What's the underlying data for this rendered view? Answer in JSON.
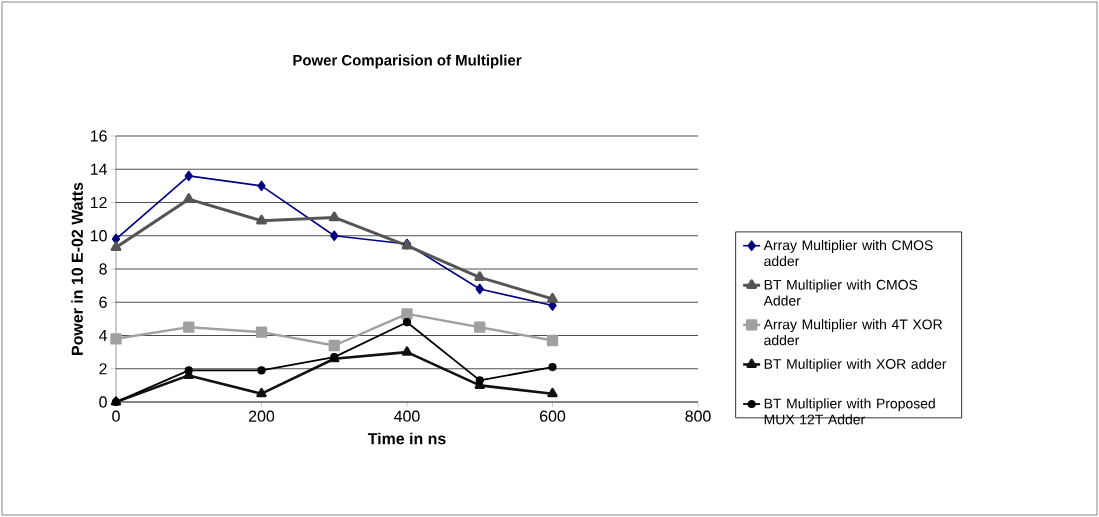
{
  "chart_data": {
    "type": "line",
    "title": "Power Comparision of Multiplier",
    "xlabel": "Time in ns",
    "ylabel": "Power in 10 E-02 Watts",
    "x": [
      0,
      100,
      200,
      300,
      400,
      500,
      600
    ],
    "xlim": [
      0,
      800
    ],
    "xticks": [
      0,
      200,
      400,
      600,
      800
    ],
    "ylim": [
      0,
      16
    ],
    "yticks": [
      0,
      2,
      4,
      6,
      8,
      10,
      12,
      14,
      16
    ],
    "grid": "y",
    "legend": "right",
    "series": [
      {
        "name": "Array Multiplier with CMOS adder",
        "color": "#000080",
        "marker": "diamond",
        "values": [
          9.8,
          13.6,
          13.0,
          10.0,
          9.5,
          6.8,
          5.8
        ]
      },
      {
        "name": "BT Multiplier with CMOS Adder",
        "color": "#555555",
        "marker": "triangle",
        "values": [
          9.3,
          12.2,
          10.9,
          11.1,
          9.4,
          7.5,
          6.2
        ]
      },
      {
        "name": "Array Multiplier with 4T XOR adder",
        "color": "#a0a0a0",
        "marker": "square",
        "values": [
          3.8,
          4.5,
          4.2,
          3.4,
          5.3,
          4.5,
          3.7
        ]
      },
      {
        "name": "BT Multiplier with XOR adder",
        "color": "#111111",
        "marker": "triangle",
        "values": [
          0,
          1.6,
          0.5,
          2.6,
          3.0,
          1.0,
          0.5
        ]
      },
      {
        "name": "BT Multiplier with Proposed MUX 12T Adder",
        "color": "#000000",
        "marker": "circle",
        "values": [
          0,
          1.9,
          1.9,
          2.7,
          4.8,
          1.3,
          2.1
        ]
      }
    ]
  }
}
